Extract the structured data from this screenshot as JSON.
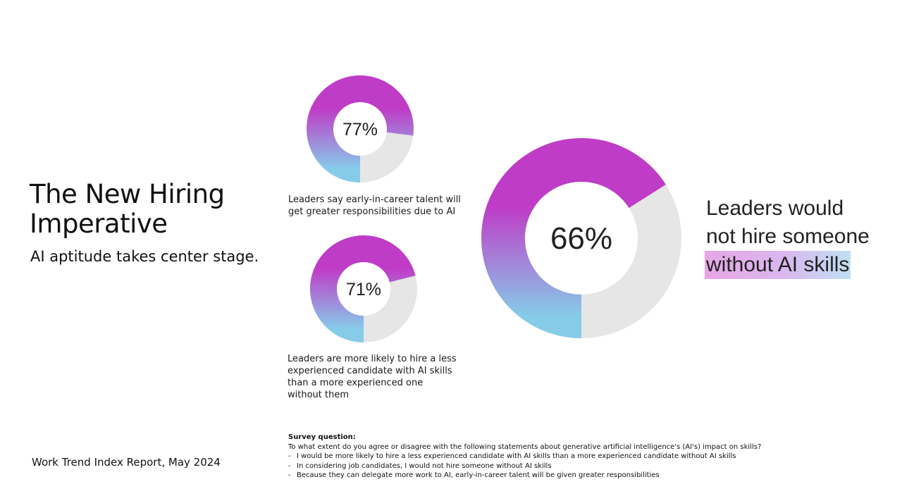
{
  "title": "The New Hiring Imperative",
  "subtitle": "AI aptitude takes center stage.",
  "source": "Work Trend Index Report, May 2024",
  "colors": {
    "gradient_top": "#bf3cc7",
    "gradient_bottom": "#86cce9",
    "track": "#e6e6e6"
  },
  "chart_data": [
    {
      "type": "pie",
      "variant": "donut",
      "value": 77,
      "label": "77%",
      "caption": "Leaders say early-in-career talent will get greater responsibilities due to AI"
    },
    {
      "type": "pie",
      "variant": "donut",
      "value": 71,
      "label": "71%",
      "caption": "Leaders are more likely to hire a less experienced candidate with AI skills than a more experienced one without them"
    },
    {
      "type": "pie",
      "variant": "donut",
      "value": 66,
      "label": "66%",
      "caption_lines": [
        "Leaders would",
        "not hire someone",
        "without AI skills"
      ]
    }
  ],
  "survey": {
    "heading": "Survey question:",
    "question": "To what extent do you agree or disagree with the following statements about generative artificial intelligence's (AI's) impact on skills?",
    "items": [
      "I would be more likely to hire a less experienced candidate with AI skills than a more experienced candidate without AI skills",
      "In considering job candidates, I would not hire someone without AI skills",
      "Because they can delegate more work to AI, early-in-career talent will be given greater responsibilities"
    ]
  }
}
